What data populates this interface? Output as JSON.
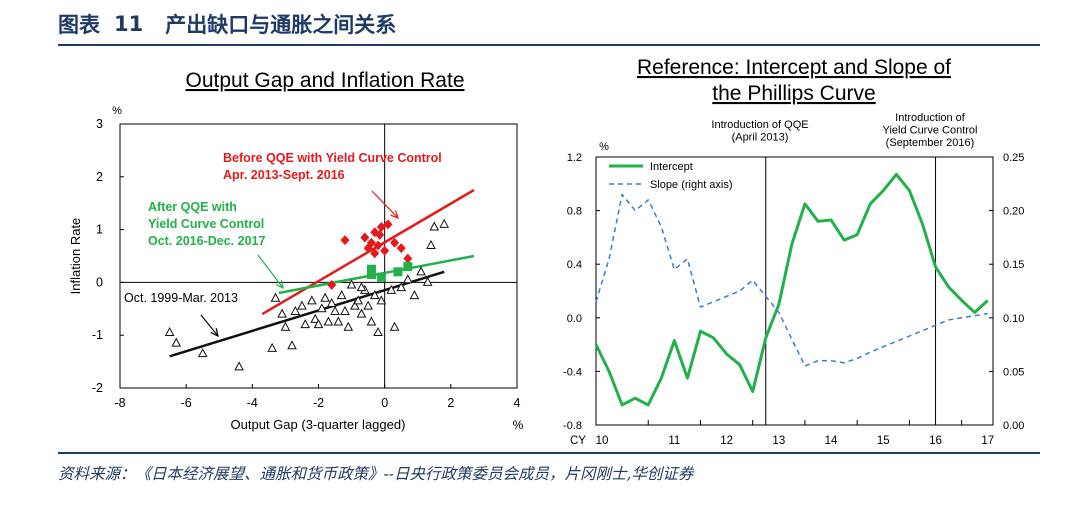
{
  "header": {
    "prefix": "图表",
    "number": "11",
    "title": "产出缺口与通胀之间关系"
  },
  "footer": {
    "source": "资料来源：《日本经济展望、通胀和货币政策》--日央行政策委员会成员，片冈刚士,华创证券"
  },
  "colors": {
    "navy": "#1f3a64",
    "red": "#e41a1c",
    "green": "#22b04b",
    "black": "#111111",
    "blue": "#3a7fc4"
  },
  "chart_data": [
    {
      "type": "scatter",
      "title": "Output Gap and Inflation Rate",
      "xlabel": "Output Gap (3-quarter lagged)",
      "ylabel": "Inflation Rate",
      "x_unit": "%",
      "y_unit": "%",
      "xlim": [
        -8,
        4
      ],
      "ylim": [
        -2,
        3
      ],
      "xticks": [
        -8,
        -6,
        -4,
        -2,
        0,
        2,
        4
      ],
      "yticks": [
        -2,
        -1,
        0,
        1,
        2,
        3
      ],
      "series": [
        {
          "name": "Oct. 1999-Mar. 2013",
          "marker": "triangle",
          "points": [
            [
              -6.5,
              -0.95
            ],
            [
              -6.3,
              -1.15
            ],
            [
              -5.5,
              -1.35
            ],
            [
              -4.4,
              -1.6
            ],
            [
              -3.4,
              -1.25
            ],
            [
              -3.3,
              -0.3
            ],
            [
              -3.1,
              -0.6
            ],
            [
              -3.0,
              -0.85
            ],
            [
              -2.8,
              -1.2
            ],
            [
              -2.7,
              -0.55
            ],
            [
              -2.5,
              -0.45
            ],
            [
              -2.4,
              -0.8
            ],
            [
              -2.2,
              -0.35
            ],
            [
              -2.1,
              -0.7
            ],
            [
              -2.0,
              -0.8
            ],
            [
              -1.9,
              -0.5
            ],
            [
              -1.8,
              -0.3
            ],
            [
              -1.7,
              -0.75
            ],
            [
              -1.6,
              -0.4
            ],
            [
              -1.5,
              -0.55
            ],
            [
              -1.4,
              -0.75
            ],
            [
              -1.3,
              -0.25
            ],
            [
              -1.2,
              -0.55
            ],
            [
              -1.1,
              -0.85
            ],
            [
              -1.0,
              -0.05
            ],
            [
              -0.9,
              -0.45
            ],
            [
              -0.8,
              -0.35
            ],
            [
              -0.7,
              -0.6
            ],
            [
              -0.6,
              -0.15
            ],
            [
              -0.5,
              -0.45
            ],
            [
              -0.4,
              -0.75
            ],
            [
              -0.3,
              -0.25
            ],
            [
              -0.2,
              -0.95
            ],
            [
              -0.1,
              -0.35
            ],
            [
              0.2,
              -0.15
            ],
            [
              0.3,
              -0.85
            ],
            [
              0.5,
              -0.1
            ],
            [
              0.7,
              0.05
            ],
            [
              0.9,
              -0.25
            ],
            [
              1.1,
              0.2
            ],
            [
              1.3,
              0.0
            ],
            [
              1.4,
              0.7
            ],
            [
              1.5,
              1.05
            ],
            [
              1.8,
              1.1
            ],
            [
              -0.7,
              -0.1
            ]
          ]
        },
        {
          "name": "Before QQE with Yield Curve Control Apr. 2013-Sept. 2016",
          "marker": "diamond",
          "points": [
            [
              -1.2,
              0.8
            ],
            [
              -0.6,
              0.85
            ],
            [
              -0.5,
              0.65
            ],
            [
              -0.4,
              0.75
            ],
            [
              -0.3,
              0.95
            ],
            [
              -0.3,
              0.55
            ],
            [
              -0.2,
              0.7
            ],
            [
              -0.15,
              0.9
            ],
            [
              -0.1,
              1.05
            ],
            [
              0.0,
              0.6
            ],
            [
              0.1,
              1.1
            ],
            [
              0.3,
              0.75
            ],
            [
              0.5,
              0.65
            ],
            [
              0.7,
              0.45
            ],
            [
              -1.6,
              -0.05
            ]
          ]
        },
        {
          "name": "After QQE with Yield Curve Control Oct. 2016-Dec. 2017",
          "marker": "square",
          "points": [
            [
              -0.4,
              0.15
            ],
            [
              -0.4,
              0.25
            ],
            [
              -0.1,
              0.1
            ],
            [
              0.4,
              0.2
            ],
            [
              0.7,
              0.3
            ]
          ]
        }
      ],
      "fit_lines": [
        {
          "series": "Oct. 1999-Mar. 2013",
          "from": [
            -6.5,
            -1.4
          ],
          "to": [
            1.8,
            0.2
          ]
        },
        {
          "series": "Before QQE with Yield Curve Control Apr. 2013-Sept. 2016",
          "from": [
            -3.7,
            -0.6
          ],
          "to": [
            2.7,
            1.75
          ]
        },
        {
          "series": "After QQE with Yield Curve Control Oct. 2016-Dec. 2017",
          "from": [
            -3.2,
            -0.2
          ],
          "to": [
            2.7,
            0.5
          ]
        }
      ],
      "annotations": [
        {
          "lines": [
            "Before QQE with Yield Curve Control",
            "Apr. 2013-Sept. 2016"
          ],
          "color": "red"
        },
        {
          "lines": [
            "After QQE with",
            "Yield Curve Control",
            "Oct. 2016-Dec. 2017"
          ],
          "color": "green"
        },
        {
          "lines": [
            "Oct. 1999-Mar. 2013"
          ],
          "color": "black"
        }
      ]
    },
    {
      "type": "line",
      "title_lines": [
        "Reference: Intercept and Slope of",
        "the Phillips Curve"
      ],
      "x_prefix": "CY",
      "x_ticks": [
        10,
        11,
        12,
        13,
        14,
        15,
        16,
        17
      ],
      "xlim": [
        10,
        17.6
      ],
      "y_left": {
        "unit": "%",
        "min": -0.8,
        "max": 1.2,
        "ticks": [
          "-0.8",
          "-0.4",
          "0.0",
          "0.4",
          "0.8",
          "1.2"
        ]
      },
      "y_right": {
        "min": 0.0,
        "max": 0.25,
        "ticks": [
          "0.00",
          "0.05",
          "0.10",
          "0.15",
          "0.20",
          "0.25"
        ]
      },
      "series": [
        {
          "name": "Intercept",
          "axis": "left",
          "style": "solid",
          "x": [
            10.0,
            10.25,
            10.5,
            10.75,
            11.0,
            11.25,
            11.5,
            11.75,
            12.0,
            12.25,
            12.5,
            12.75,
            13.0,
            13.25,
            13.5,
            13.75,
            14.0,
            14.25,
            14.5,
            14.75,
            15.0,
            15.25,
            15.5,
            15.75,
            16.0,
            16.25,
            16.5,
            16.75,
            17.0,
            17.25,
            17.5
          ],
          "y": [
            -0.2,
            -0.4,
            -0.65,
            -0.6,
            -0.65,
            -0.45,
            -0.17,
            -0.45,
            -0.1,
            -0.15,
            -0.27,
            -0.35,
            -0.55,
            -0.15,
            0.1,
            0.55,
            0.85,
            0.72,
            0.73,
            0.58,
            0.62,
            0.85,
            0.95,
            1.07,
            0.95,
            0.7,
            0.38,
            0.23,
            0.13,
            0.04,
            0.13
          ]
        },
        {
          "name": "Slope (right axis)",
          "axis": "right",
          "style": "dashed",
          "x": [
            10.0,
            10.25,
            10.5,
            10.75,
            11.0,
            11.25,
            11.5,
            11.75,
            12.0,
            12.25,
            12.5,
            12.75,
            13.0,
            13.25,
            13.5,
            13.75,
            14.0,
            14.25,
            14.5,
            14.75,
            15.0,
            15.25,
            15.5,
            15.75,
            16.0,
            16.25,
            16.5,
            16.75,
            17.0,
            17.25,
            17.5
          ],
          "y": [
            0.115,
            0.155,
            0.215,
            0.2,
            0.21,
            0.185,
            0.145,
            0.155,
            0.11,
            0.115,
            0.12,
            0.125,
            0.135,
            0.12,
            0.105,
            0.08,
            0.055,
            0.06,
            0.06,
            0.058,
            0.062,
            0.068,
            0.073,
            0.078,
            0.083,
            0.088,
            0.093,
            0.098,
            0.1,
            0.102,
            0.104
          ]
        }
      ],
      "events": [
        {
          "x": 13.25,
          "lines": [
            "Introduction of QQE",
            "(April 2013)"
          ]
        },
        {
          "x": 16.5,
          "lines": [
            "Introduction of",
            "Yield Curve Control",
            "(September 2016)"
          ]
        }
      ]
    }
  ]
}
